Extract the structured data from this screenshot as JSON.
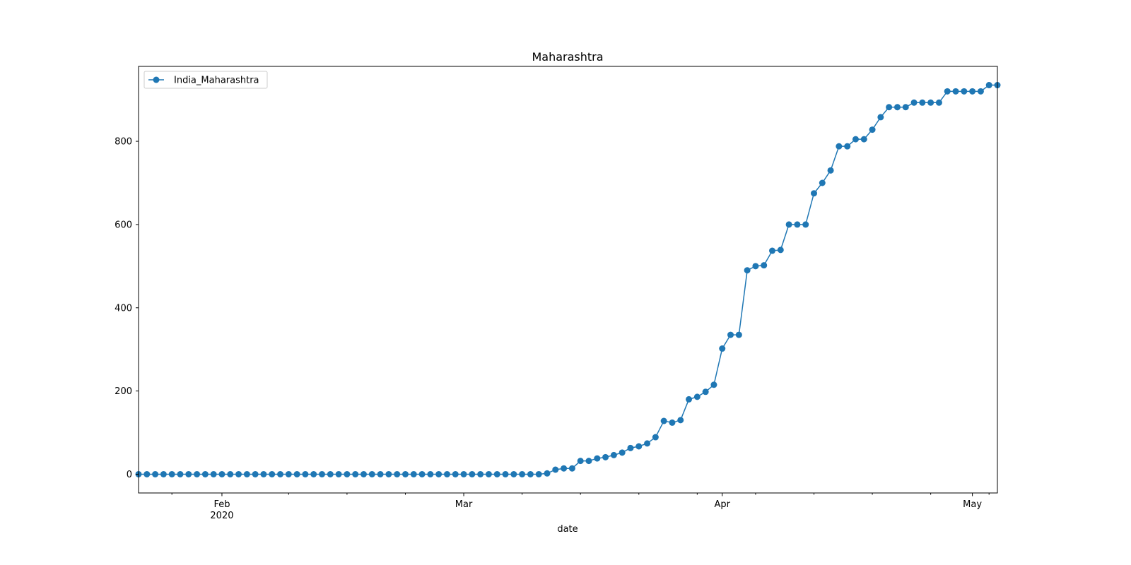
{
  "chart_data": {
    "type": "line",
    "title": "Maharashtra",
    "xlabel": "date",
    "ylabel": "",
    "ylim": [
      -45,
      980
    ],
    "xlim": [
      "2020-01-22",
      "2020-05-04"
    ],
    "y_ticks": [
      0,
      200,
      400,
      600,
      800
    ],
    "x_ticks": [
      {
        "date": "2020-02-01",
        "label": "Feb",
        "sublabel": "2020"
      },
      {
        "date": "2020-03-01",
        "label": "Mar",
        "sublabel": ""
      },
      {
        "date": "2020-04-01",
        "label": "Apr",
        "sublabel": ""
      },
      {
        "date": "2020-05-01",
        "label": "May",
        "sublabel": ""
      }
    ],
    "minor_tick_dates": [
      "2020-01-26",
      "2020-02-09",
      "2020-02-16",
      "2020-02-23",
      "2020-03-08",
      "2020-03-15",
      "2020-03-22",
      "2020-03-29",
      "2020-04-05",
      "2020-04-12",
      "2020-04-19",
      "2020-04-26",
      "2020-05-03"
    ],
    "grid": false,
    "legend": {
      "position": "top-left"
    },
    "series": [
      {
        "name": "India_Maharashtra",
        "color": "#1f77b4",
        "marker": "circle",
        "start_date": "2020-01-22",
        "values": [
          0,
          0,
          0,
          0,
          0,
          0,
          0,
          0,
          0,
          0,
          0,
          0,
          0,
          0,
          0,
          0,
          0,
          0,
          0,
          0,
          0,
          0,
          0,
          0,
          0,
          0,
          0,
          0,
          0,
          0,
          0,
          0,
          0,
          0,
          0,
          0,
          0,
          0,
          0,
          0,
          0,
          0,
          0,
          0,
          0,
          0,
          0,
          0,
          0,
          2,
          11,
          14,
          14,
          32,
          32,
          38,
          41,
          46,
          52,
          63,
          67,
          74,
          89,
          128,
          124,
          130,
          180,
          186,
          198,
          215,
          302,
          335,
          335,
          490,
          500,
          502,
          537,
          539,
          600,
          600,
          600,
          675,
          700,
          730,
          788,
          788,
          805,
          805,
          828,
          858,
          882,
          882,
          882,
          893,
          893,
          893,
          893,
          920,
          920,
          920,
          920,
          920,
          935,
          935
        ]
      }
    ]
  }
}
